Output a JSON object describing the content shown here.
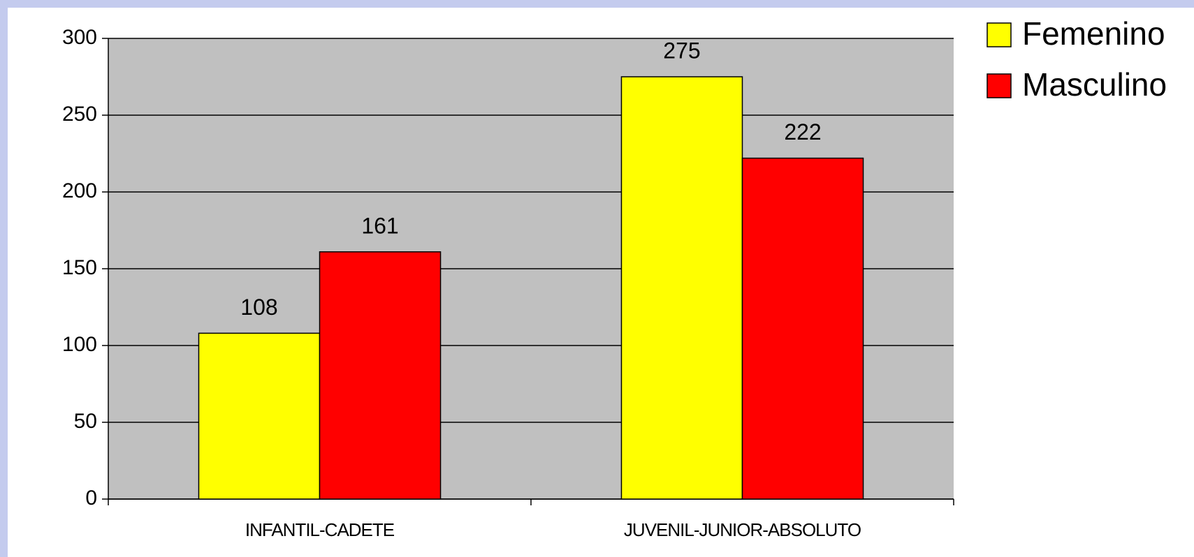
{
  "chart_data": {
    "type": "bar",
    "categories": [
      "INFANTIL-CADETE",
      "JUVENIL-JUNIOR-ABSOLUTO"
    ],
    "series": [
      {
        "name": "Femenino",
        "color": "#ffff00",
        "values": [
          108,
          275
        ]
      },
      {
        "name": "Masculino",
        "color": "#ff0000",
        "values": [
          161,
          222
        ]
      }
    ],
    "ylim": [
      0,
      300
    ],
    "yticks": [
      0,
      50,
      100,
      150,
      200,
      250,
      300
    ],
    "grid": true,
    "legend": "top-right"
  }
}
